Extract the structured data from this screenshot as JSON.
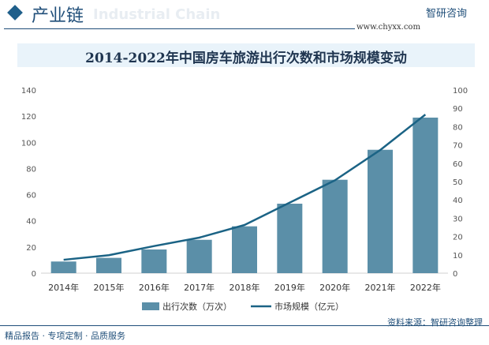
{
  "header": {
    "section": "产业链",
    "section_en": "Industrial Chain",
    "brand": "智研咨询",
    "url": "www.chyxx.com"
  },
  "footer": {
    "left": "精品报告 · 专项定制 · 品质服务",
    "source": "资料来源：智研咨询整理"
  },
  "colors": {
    "bar": "#5b8fa8",
    "line": "#1b6385",
    "accent": "#1f4e79"
  },
  "chart_data": {
    "type": "bar+line",
    "title": "2014-2022年中国房车旅游出行次数和市场规模变动",
    "categories": [
      "2014年",
      "2015年",
      "2016年",
      "2017年",
      "2018年",
      "2019年",
      "2020年",
      "2021年",
      "2022年"
    ],
    "series": [
      {
        "name": "出行次数（万次）",
        "type": "bar",
        "axis": "left",
        "values": [
          8.9,
          11.7,
          18.1,
          25.5,
          35.8,
          53.1,
          71.4,
          94.3,
          118.9
        ]
      },
      {
        "name": "市场规模（亿元）",
        "type": "line",
        "axis": "right",
        "values": [
          7.3,
          9.8,
          14.8,
          19.4,
          26.3,
          38.5,
          50.7,
          67.2,
          86.6
        ]
      }
    ],
    "ylim_left": [
      0,
      140
    ],
    "yticks_left": [
      0,
      20,
      40,
      60,
      80,
      100,
      120,
      140
    ],
    "ylim_right": [
      0,
      100
    ],
    "yticks_right": [
      0,
      10,
      20,
      30,
      40,
      50,
      60,
      70,
      80,
      90,
      100
    ],
    "grid": false,
    "legend": "bottom"
  }
}
